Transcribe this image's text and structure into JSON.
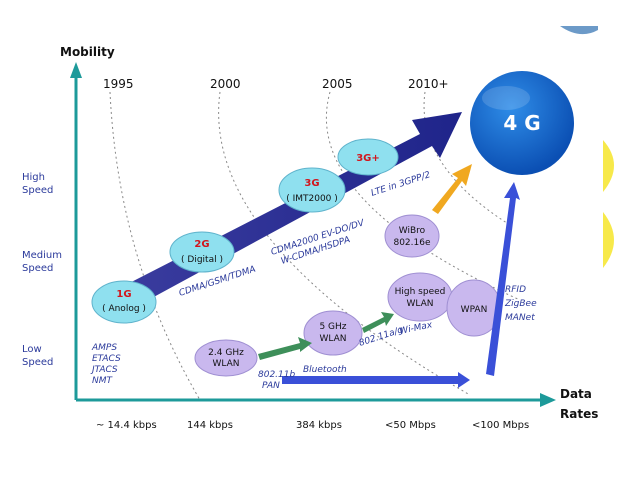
{
  "axes": {
    "y_title": "Mobility",
    "x_title_line1": "Data",
    "x_title_line2": "Rates"
  },
  "years": [
    "1995",
    "2000",
    "2005",
    "2010+"
  ],
  "speeds": {
    "high": [
      "High",
      "Speed"
    ],
    "medium": [
      "Medium",
      "Speed"
    ],
    "low": [
      "Low",
      "Speed"
    ]
  },
  "rates": [
    "~ 14.4 kbps",
    "144 kbps",
    "384 kbps",
    "<50 Mbps",
    "<100 Mbps"
  ],
  "generations": [
    {
      "title": "1G",
      "sub": "( Anolog )"
    },
    {
      "title": "2G",
      "sub": "( Digital )"
    },
    {
      "title": "3G",
      "sub": "( IMT2000 )"
    },
    {
      "title": "3G+",
      "sub": ""
    }
  ],
  "four_g": "4 G",
  "tech_labels": {
    "g1": [
      "AMPS",
      "ETACS",
      "JTACS",
      "NMT"
    ],
    "g2": "CDMA/GSM/TDMA",
    "g3_line1": "CDMA2000  EV-DO/DV",
    "g3_line2": "W-CDMA/HSDPA",
    "g3plus": "LTE in 3GPP/2",
    "wlan24": "802.11b",
    "pan": "PAN",
    "bluetooth": "Bluetooth",
    "wlan5": "802.11a/g",
    "wimax": "Wi-Max",
    "wpan": [
      "RFID",
      "ZigBee",
      "MANet"
    ]
  },
  "wireless": {
    "wlan24": [
      "2.4 GHz",
      "WLAN"
    ],
    "wlan5": [
      "5 GHz",
      "WLAN"
    ],
    "wlan_hs": [
      "High speed",
      "WLAN"
    ],
    "wibro": [
      "WiBro",
      "802.16e"
    ],
    "wpan": "WPAN"
  },
  "colors": {
    "axis": "#1d9a9a",
    "main_arrow": "#2a2f8f",
    "bubble_fill": "#8fe0ef",
    "lavender": "#c9b8ee",
    "red": "#d2151c",
    "blue_text": "#2b3a9b",
    "green_arrow": "#3e8f5a",
    "orange_arrow": "#f0a820",
    "blue_arrow": "#3a50d8",
    "four_g_fill": "#0b62c9"
  }
}
